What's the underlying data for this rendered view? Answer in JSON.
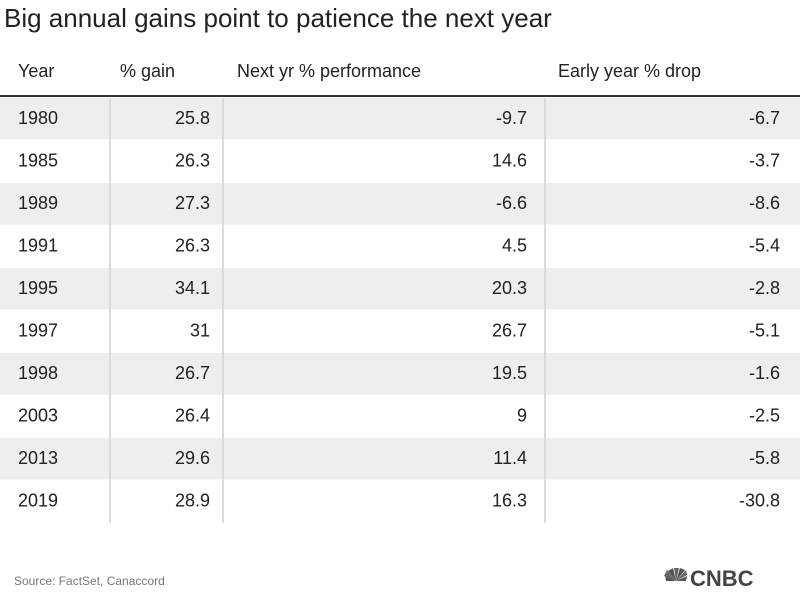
{
  "title": "Big annual gains point to patience the next year",
  "table": {
    "columns": [
      "Year",
      "% gain",
      "Next yr % performance",
      "Early year % drop"
    ],
    "rows": [
      [
        "1980",
        "25.8",
        "-9.7",
        "-6.7"
      ],
      [
        "1985",
        "26.3",
        "14.6",
        "-3.7"
      ],
      [
        "1989",
        "27.3",
        "-6.6",
        "-8.6"
      ],
      [
        "1991",
        "26.3",
        "4.5",
        "-5.4"
      ],
      [
        "1995",
        "34.1",
        "20.3",
        "-2.8"
      ],
      [
        "1997",
        "31",
        "26.7",
        "-5.1"
      ],
      [
        "1998",
        "26.7",
        "19.5",
        "-1.6"
      ],
      [
        "2003",
        "26.4",
        "9",
        "-2.5"
      ],
      [
        "2013",
        "29.6",
        "11.4",
        "-5.8"
      ],
      [
        "2019",
        "28.9",
        "16.3",
        "-30.8"
      ]
    ]
  },
  "footer": {
    "source": "Source: FactSet, Canaccord",
    "logo": "CNBC"
  }
}
